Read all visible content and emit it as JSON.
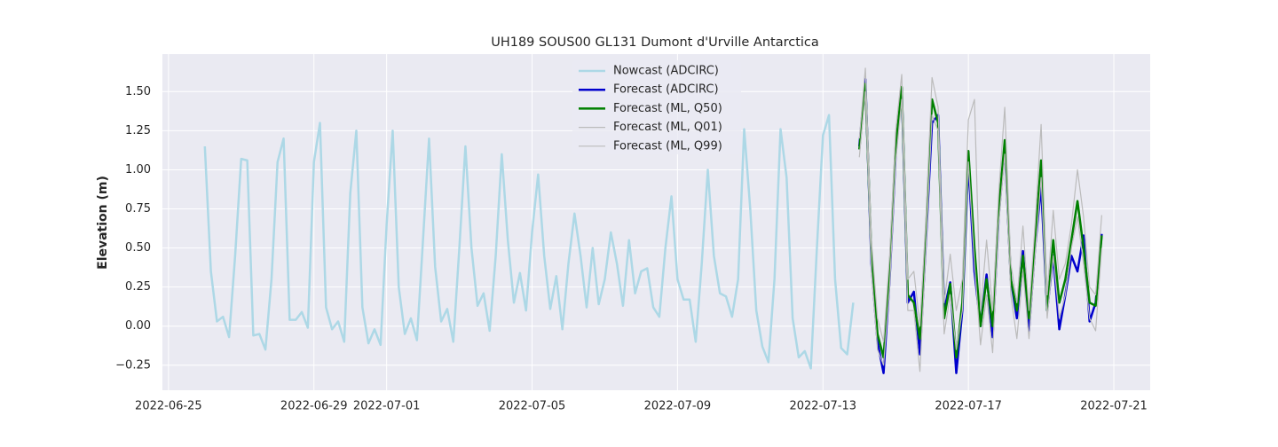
{
  "chart_data": {
    "type": "line",
    "title": "UH189 SOUS00 GL131 Dumont d'Urville Antarctica",
    "y_label": "Elevation (m)",
    "xlim": [
      "2022-06-24 20:00",
      "2022-07-22 00:00"
    ],
    "xticks": [
      "2022-06-25",
      "2022-06-29",
      "2022-07-01",
      "2022-07-05",
      "2022-07-09",
      "2022-07-13",
      "2022-07-17",
      "2022-07-21"
    ],
    "ylim": [
      -0.41,
      1.74
    ],
    "yticks": [
      {
        "value": -0.25,
        "label": "−0.25"
      },
      {
        "value": 0,
        "label": "0.00"
      },
      {
        "value": 0.25,
        "label": "0.25"
      },
      {
        "value": 0.5,
        "label": "0.50"
      },
      {
        "value": 0.75,
        "label": "0.75"
      },
      {
        "value": 1,
        "label": "1.00"
      },
      {
        "value": 1.25,
        "label": "1.25"
      },
      {
        "value": 1.5,
        "label": "1.50"
      }
    ],
    "grid": true,
    "legend": "upper center",
    "background": "#eaeaf2",
    "series": [
      {
        "name": "Nowcast (ADCIRC)",
        "color": "#add8e6",
        "width": 2.5,
        "x": [
          "2022-06-26 00:00",
          "2022-06-26 04:00",
          "2022-06-26 08:00",
          "2022-06-26 12:00",
          "2022-06-26 16:00",
          "2022-06-26 20:00",
          "2022-06-27 00:00",
          "2022-06-27 04:00",
          "2022-06-27 08:00",
          "2022-06-27 12:00",
          "2022-06-27 16:00",
          "2022-06-27 20:00",
          "2022-06-28 00:00",
          "2022-06-28 04:00",
          "2022-06-28 08:00",
          "2022-06-28 12:00",
          "2022-06-28 16:00",
          "2022-06-28 20:00",
          "2022-06-29 00:00",
          "2022-06-29 04:00",
          "2022-06-29 08:00",
          "2022-06-29 12:00",
          "2022-06-29 16:00",
          "2022-06-29 20:00",
          "2022-06-30 00:00",
          "2022-06-30 04:00",
          "2022-06-30 08:00",
          "2022-06-30 12:00",
          "2022-06-30 16:00",
          "2022-06-30 20:00",
          "2022-07-01 00:00",
          "2022-07-01 04:00",
          "2022-07-01 08:00",
          "2022-07-01 12:00",
          "2022-07-01 16:00",
          "2022-07-01 20:00",
          "2022-07-02 00:00",
          "2022-07-02 04:00",
          "2022-07-02 08:00",
          "2022-07-02 12:00",
          "2022-07-02 16:00",
          "2022-07-02 20:00",
          "2022-07-03 00:00",
          "2022-07-03 04:00",
          "2022-07-03 08:00",
          "2022-07-03 12:00",
          "2022-07-03 16:00",
          "2022-07-03 20:00",
          "2022-07-04 00:00",
          "2022-07-04 04:00",
          "2022-07-04 08:00",
          "2022-07-04 12:00",
          "2022-07-04 16:00",
          "2022-07-04 20:00",
          "2022-07-05 00:00",
          "2022-07-05 04:00",
          "2022-07-05 08:00",
          "2022-07-05 12:00",
          "2022-07-05 16:00",
          "2022-07-05 20:00",
          "2022-07-06 00:00",
          "2022-07-06 04:00",
          "2022-07-06 08:00",
          "2022-07-06 12:00",
          "2022-07-06 16:00",
          "2022-07-06 20:00",
          "2022-07-07 00:00",
          "2022-07-07 04:00",
          "2022-07-07 08:00",
          "2022-07-07 12:00",
          "2022-07-07 16:00",
          "2022-07-07 20:00",
          "2022-07-08 00:00",
          "2022-07-08 04:00",
          "2022-07-08 08:00",
          "2022-07-08 12:00",
          "2022-07-08 16:00",
          "2022-07-08 20:00",
          "2022-07-09 00:00",
          "2022-07-09 04:00",
          "2022-07-09 08:00",
          "2022-07-09 12:00",
          "2022-07-09 16:00",
          "2022-07-09 20:00",
          "2022-07-10 00:00",
          "2022-07-10 04:00",
          "2022-07-10 08:00",
          "2022-07-10 12:00",
          "2022-07-10 16:00",
          "2022-07-10 20:00",
          "2022-07-11 00:00",
          "2022-07-11 04:00",
          "2022-07-11 08:00",
          "2022-07-11 12:00",
          "2022-07-11 16:00",
          "2022-07-11 20:00",
          "2022-07-12 00:00",
          "2022-07-12 04:00",
          "2022-07-12 08:00",
          "2022-07-12 12:00",
          "2022-07-12 16:00",
          "2022-07-12 20:00",
          "2022-07-13 00:00",
          "2022-07-13 04:00",
          "2022-07-13 08:00",
          "2022-07-13 12:00",
          "2022-07-13 16:00",
          "2022-07-13 20:00"
        ],
        "values": [
          1.15,
          0.35,
          0.03,
          0.06,
          -0.07,
          0.45,
          1.07,
          1.06,
          -0.06,
          -0.05,
          -0.15,
          0.3,
          1.05,
          1.2,
          0.04,
          0.04,
          0.09,
          -0.01,
          1.05,
          1.3,
          0.12,
          -0.02,
          0.03,
          -0.1,
          0.85,
          1.25,
          0.12,
          -0.11,
          -0.02,
          -0.12,
          0.65,
          1.25,
          0.25,
          -0.05,
          0.05,
          -0.09,
          0.55,
          1.2,
          0.38,
          0.03,
          0.11,
          -0.1,
          0.5,
          1.15,
          0.5,
          0.13,
          0.21,
          -0.03,
          0.45,
          1.1,
          0.55,
          0.15,
          0.34,
          0.1,
          0.6,
          0.97,
          0.45,
          0.11,
          0.32,
          -0.02,
          0.4,
          0.72,
          0.45,
          0.12,
          0.5,
          0.14,
          0.3,
          0.6,
          0.4,
          0.13,
          0.55,
          0.21,
          0.35,
          0.37,
          0.12,
          0.06,
          0.5,
          0.83,
          0.3,
          0.17,
          0.17,
          -0.1,
          0.4,
          1.0,
          0.45,
          0.21,
          0.19,
          0.06,
          0.3,
          1.26,
          0.75,
          0.1,
          -0.13,
          -0.23,
          0.3,
          1.26,
          0.95,
          0.05,
          -0.2,
          -0.16,
          -0.27,
          0.5,
          1.22,
          1.35,
          0.3,
          -0.14,
          -0.18,
          0.15
        ]
      },
      {
        "name": "Forecast (ADCIRC)",
        "color": "#0000cd",
        "width": 2.5,
        "x": [
          "2022-07-14 00:00",
          "2022-07-14 04:00",
          "2022-07-14 08:00",
          "2022-07-14 12:00",
          "2022-07-14 16:00",
          "2022-07-14 20:00",
          "2022-07-15 00:00",
          "2022-07-15 04:00",
          "2022-07-15 08:00",
          "2022-07-15 12:00",
          "2022-07-15 16:00",
          "2022-07-15 20:00",
          "2022-07-16 00:00",
          "2022-07-16 04:00",
          "2022-07-16 08:00",
          "2022-07-16 12:00",
          "2022-07-16 16:00",
          "2022-07-16 20:00",
          "2022-07-17 00:00",
          "2022-07-17 04:00",
          "2022-07-17 08:00",
          "2022-07-17 12:00",
          "2022-07-17 16:00",
          "2022-07-17 20:00",
          "2022-07-18 00:00",
          "2022-07-18 04:00",
          "2022-07-18 08:00",
          "2022-07-18 12:00",
          "2022-07-18 16:00",
          "2022-07-18 20:00",
          "2022-07-19 00:00",
          "2022-07-19 04:00",
          "2022-07-19 08:00",
          "2022-07-19 12:00",
          "2022-07-19 16:00",
          "2022-07-19 20:00",
          "2022-07-20 00:00",
          "2022-07-20 04:00",
          "2022-07-20 08:00",
          "2022-07-20 12:00",
          "2022-07-20 16:00"
        ],
        "values": [
          1.15,
          1.58,
          0.4,
          -0.1,
          -0.3,
          0.3,
          1.1,
          1.52,
          0.15,
          0.22,
          -0.18,
          0.55,
          1.3,
          1.35,
          0.1,
          0.28,
          -0.3,
          0.1,
          1.05,
          0.35,
          0.0,
          0.33,
          -0.07,
          0.7,
          1.15,
          0.3,
          0.05,
          0.48,
          -0.03,
          0.5,
          0.9,
          0.1,
          0.45,
          -0.02,
          0.2,
          0.45,
          0.35,
          0.58,
          0.03,
          0.15,
          0.59
        ]
      },
      {
        "name": "Forecast (ML, Q50)",
        "color": "#008000",
        "width": 2.5,
        "x": [
          "2022-07-14 00:00",
          "2022-07-14 04:00",
          "2022-07-14 08:00",
          "2022-07-14 12:00",
          "2022-07-14 16:00",
          "2022-07-14 20:00",
          "2022-07-15 00:00",
          "2022-07-15 04:00",
          "2022-07-15 08:00",
          "2022-07-15 12:00",
          "2022-07-15 16:00",
          "2022-07-15 20:00",
          "2022-07-16 00:00",
          "2022-07-16 04:00",
          "2022-07-16 08:00",
          "2022-07-16 12:00",
          "2022-07-16 16:00",
          "2022-07-16 20:00",
          "2022-07-17 00:00",
          "2022-07-17 04:00",
          "2022-07-17 08:00",
          "2022-07-17 12:00",
          "2022-07-17 16:00",
          "2022-07-17 20:00",
          "2022-07-18 00:00",
          "2022-07-18 04:00",
          "2022-07-18 08:00",
          "2022-07-18 12:00",
          "2022-07-18 16:00",
          "2022-07-18 20:00",
          "2022-07-19 00:00",
          "2022-07-19 04:00",
          "2022-07-19 08:00",
          "2022-07-19 12:00",
          "2022-07-19 16:00",
          "2022-07-19 20:00",
          "2022-07-20 00:00",
          "2022-07-20 04:00",
          "2022-07-20 08:00",
          "2022-07-20 12:00",
          "2022-07-20 16:00"
        ],
        "values": [
          1.13,
          1.55,
          0.45,
          -0.05,
          -0.2,
          0.35,
          1.15,
          1.53,
          0.2,
          0.15,
          -0.08,
          0.6,
          1.45,
          1.3,
          0.05,
          0.27,
          -0.2,
          0.15,
          1.12,
          0.5,
          0.0,
          0.3,
          0.0,
          0.75,
          1.19,
          0.3,
          0.1,
          0.45,
          0.05,
          0.55,
          1.06,
          0.1,
          0.55,
          0.15,
          0.3,
          0.55,
          0.8,
          0.5,
          0.15,
          0.13,
          0.58
        ]
      },
      {
        "name": "Forecast (ML, Q01)",
        "color": "#bbbbbb",
        "width": 1.2,
        "x": [
          "2022-07-14 00:00",
          "2022-07-14 04:00",
          "2022-07-14 08:00",
          "2022-07-14 12:00",
          "2022-07-14 16:00",
          "2022-07-14 20:00",
          "2022-07-15 00:00",
          "2022-07-15 04:00",
          "2022-07-15 08:00",
          "2022-07-15 12:00",
          "2022-07-15 16:00",
          "2022-07-15 20:00",
          "2022-07-16 00:00",
          "2022-07-16 04:00",
          "2022-07-16 08:00",
          "2022-07-16 12:00",
          "2022-07-16 16:00",
          "2022-07-16 20:00",
          "2022-07-17 00:00",
          "2022-07-17 04:00",
          "2022-07-17 08:00",
          "2022-07-17 12:00",
          "2022-07-17 16:00",
          "2022-07-17 20:00",
          "2022-07-18 00:00",
          "2022-07-18 04:00",
          "2022-07-18 08:00",
          "2022-07-18 12:00",
          "2022-07-18 16:00",
          "2022-07-18 20:00",
          "2022-07-19 00:00",
          "2022-07-19 04:00",
          "2022-07-19 08:00",
          "2022-07-19 12:00",
          "2022-07-19 16:00",
          "2022-07-19 20:00",
          "2022-07-20 00:00",
          "2022-07-20 04:00",
          "2022-07-20 08:00",
          "2022-07-20 12:00",
          "2022-07-20 16:00"
        ],
        "values": [
          1.08,
          1.5,
          0.35,
          -0.15,
          -0.25,
          0.25,
          1.05,
          1.45,
          0.1,
          0.1,
          -0.29,
          0.5,
          1.35,
          1.25,
          -0.05,
          0.2,
          -0.15,
          0.1,
          1.05,
          0.4,
          -0.12,
          0.2,
          -0.17,
          0.65,
          1.1,
          0.2,
          -0.08,
          0.35,
          -0.08,
          0.45,
          0.95,
          0.05,
          0.45,
          0.05,
          0.2,
          0.5,
          0.7,
          0.4,
          0.05,
          -0.03,
          0.5
        ]
      },
      {
        "name": "Forecast (ML, Q99)",
        "color": "#bbbbbb",
        "width": 1.2,
        "x": [
          "2022-07-14 00:00",
          "2022-07-14 04:00",
          "2022-07-14 08:00",
          "2022-07-14 12:00",
          "2022-07-14 16:00",
          "2022-07-14 20:00",
          "2022-07-15 00:00",
          "2022-07-15 04:00",
          "2022-07-15 08:00",
          "2022-07-15 12:00",
          "2022-07-15 16:00",
          "2022-07-15 20:00",
          "2022-07-16 00:00",
          "2022-07-16 04:00",
          "2022-07-16 08:00",
          "2022-07-16 12:00",
          "2022-07-16 16:00",
          "2022-07-16 20:00",
          "2022-07-17 00:00",
          "2022-07-17 04:00",
          "2022-07-17 08:00",
          "2022-07-17 12:00",
          "2022-07-17 16:00",
          "2022-07-17 20:00",
          "2022-07-18 00:00",
          "2022-07-18 04:00",
          "2022-07-18 08:00",
          "2022-07-18 12:00",
          "2022-07-18 16:00",
          "2022-07-18 20:00",
          "2022-07-19 00:00",
          "2022-07-19 04:00",
          "2022-07-19 08:00",
          "2022-07-19 12:00",
          "2022-07-19 16:00",
          "2022-07-19 20:00",
          "2022-07-20 00:00",
          "2022-07-20 04:00",
          "2022-07-20 08:00",
          "2022-07-20 12:00",
          "2022-07-20 16:00"
        ],
        "values": [
          1.2,
          1.65,
          0.55,
          0.05,
          -0.1,
          0.45,
          1.25,
          1.61,
          0.3,
          0.35,
          0.0,
          0.7,
          1.59,
          1.4,
          0.15,
          0.46,
          0.1,
          0.3,
          1.32,
          1.45,
          0.1,
          0.55,
          0.1,
          0.85,
          1.4,
          0.4,
          0.15,
          0.64,
          0.1,
          0.65,
          1.29,
          0.2,
          0.74,
          0.3,
          0.4,
          0.65,
          1.0,
          0.7,
          0.25,
          0.2,
          0.71
        ]
      }
    ]
  }
}
